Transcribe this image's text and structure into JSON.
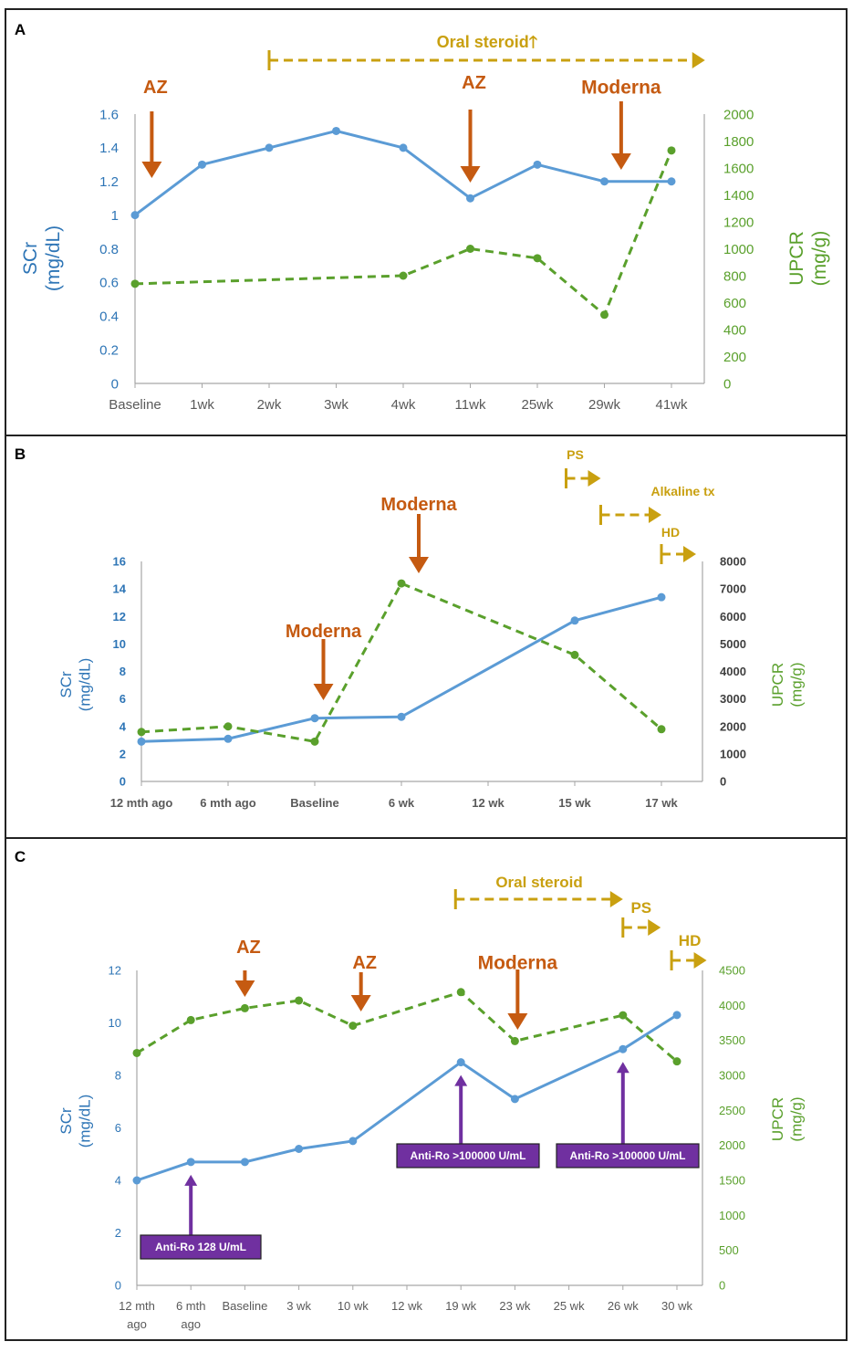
{
  "colors": {
    "scr": "#5b9bd5",
    "upcr": "#5aa02c",
    "event": "#c55a11",
    "steroid": "#c9a010",
    "antiro": "#7030a0",
    "axis_scr": "#2e75b6",
    "axis_upcr": "#5aa02c",
    "tick": "#595959"
  },
  "chart_data": [
    {
      "panel": "A",
      "type": "line",
      "categories": [
        "Baseline",
        "1wk",
        "2wk",
        "3wk",
        "4wk",
        "11wk",
        "25wk",
        "29wk",
        "41wk"
      ],
      "series": [
        {
          "name": "SCr (mg/dL)",
          "axis": "left",
          "style": "solid",
          "x": [
            0,
            1,
            2,
            3,
            4,
            5,
            6,
            7,
            8
          ],
          "values": [
            1.0,
            1.3,
            1.4,
            1.5,
            1.4,
            1.1,
            1.3,
            1.2,
            1.2
          ]
        },
        {
          "name": "UPCR (mg/g)",
          "axis": "right",
          "style": "dashed",
          "x": [
            0,
            4,
            5,
            6,
            7,
            8
          ],
          "values": [
            740,
            800,
            1000,
            930,
            510,
            1730
          ]
        }
      ],
      "left_axis": {
        "label1": "SCr",
        "label2": "(mg/dL)",
        "min": 0,
        "max": 1.6,
        "ticks": [
          "0",
          "0.2",
          "0.4",
          "0.6",
          "0.8",
          "1",
          "1.2",
          "1.4",
          "1.6"
        ]
      },
      "right_axis": {
        "label1": "UPCR",
        "label2": "(mg/g)",
        "min": 0,
        "max": 2000,
        "ticks": [
          "0",
          "200",
          "400",
          "600",
          "800",
          "1000",
          "1200",
          "1400",
          "1600",
          "1800",
          "2000"
        ]
      },
      "events": [
        {
          "label": "AZ",
          "x": 0.25
        },
        {
          "label": "AZ",
          "x": 5
        },
        {
          "label": "Moderna",
          "x": 7.25
        }
      ],
      "treatments": [
        {
          "label": "Oral steroid",
          "arrow_glyph": "🡑",
          "start": 2,
          "end": 8.5
        }
      ],
      "annotations": []
    },
    {
      "panel": "B",
      "type": "line",
      "categories": [
        "12 mth ago",
        "6 mth ago",
        "Baseline",
        "6 wk",
        "12 wk",
        "15 wk",
        "17 wk"
      ],
      "series": [
        {
          "name": "SCr (mg/dL)",
          "axis": "left",
          "style": "solid",
          "x": [
            0,
            1,
            2,
            3,
            5,
            6
          ],
          "values": [
            2.9,
            3.1,
            4.6,
            4.7,
            11.7,
            13.4
          ]
        },
        {
          "name": "UPCR (mg/g)",
          "axis": "right",
          "style": "dashed",
          "x": [
            0,
            1,
            2,
            3,
            5,
            6
          ],
          "values": [
            1800,
            2000,
            1450,
            7200,
            4600,
            1900
          ]
        }
      ],
      "left_axis": {
        "label1": "SCr",
        "label2": "(mg/dL)",
        "min": 0,
        "max": 16,
        "ticks": [
          "0",
          "2",
          "4",
          "6",
          "8",
          "10",
          "12",
          "14",
          "16"
        ]
      },
      "right_axis": {
        "label1": "UPCR",
        "label2": "(mg/g)",
        "min": 0,
        "max": 8000,
        "ticks": [
          "0",
          "1000",
          "2000",
          "3000",
          "4000",
          "5000",
          "6000",
          "7000",
          "8000"
        ]
      },
      "events": [
        {
          "label": "Moderna",
          "x": 2.1
        },
        {
          "label": "Moderna",
          "x": 3.2
        }
      ],
      "treatments": [
        {
          "label": "PS",
          "start": 4.9,
          "end": 5.3
        },
        {
          "label": "Alkaline tx",
          "start": 5.3,
          "end": 6.0
        },
        {
          "label": "HD",
          "start": 6.0,
          "end": 6.4
        }
      ],
      "annotations": []
    },
    {
      "panel": "C",
      "type": "line",
      "categories": [
        "12 mth ago",
        "6 mth ago",
        "Baseline",
        "3 wk",
        "10 wk",
        "12 wk",
        "19 wk",
        "23 wk",
        "25 wk",
        "26 wk",
        "30 wk"
      ],
      "categories_lines": [
        [
          "12 mth",
          "ago"
        ],
        [
          "6 mth",
          "ago"
        ],
        [
          "Baseline"
        ],
        [
          "3 wk"
        ],
        [
          "10 wk"
        ],
        [
          "12 wk"
        ],
        [
          "19 wk"
        ],
        [
          "23 wk"
        ],
        [
          "25 wk"
        ],
        [
          "26 wk"
        ],
        [
          "30 wk"
        ]
      ],
      "series": [
        {
          "name": "SCr (mg/dL)",
          "axis": "left",
          "style": "solid",
          "x": [
            0,
            1,
            2,
            3,
            4,
            6,
            7,
            9,
            10
          ],
          "values": [
            4.0,
            4.7,
            4.7,
            5.2,
            5.5,
            8.5,
            7.1,
            9.0,
            10.3
          ]
        },
        {
          "name": "UPCR (mg/g)",
          "axis": "right",
          "style": "dashed",
          "x": [
            0,
            1,
            2,
            3,
            4,
            6,
            7,
            9,
            10
          ],
          "values": [
            3320,
            3790,
            3960,
            4070,
            3710,
            4190,
            3490,
            3860,
            3200
          ]
        }
      ],
      "left_axis": {
        "label1": "SCr",
        "label2": "(mg/dL)",
        "min": 0,
        "max": 12,
        "ticks": [
          "0",
          "2",
          "4",
          "6",
          "8",
          "10",
          "12"
        ]
      },
      "right_axis": {
        "label1": "UPCR",
        "label2": "(mg/g)",
        "min": 0,
        "max": 4500,
        "ticks": [
          "0",
          "500",
          "1000",
          "1500",
          "2000",
          "2500",
          "3000",
          "3500",
          "4000",
          "4500"
        ]
      },
      "events": [
        {
          "label": "AZ",
          "x": 2
        },
        {
          "label": "AZ",
          "x": 4.15
        },
        {
          "label": "Moderna",
          "x": 7.05
        }
      ],
      "treatments": [
        {
          "label": "Oral steroid",
          "start": 5.9,
          "end": 9.0
        },
        {
          "label": "PS",
          "start": 9.0,
          "end": 9.7
        },
        {
          "label": "HD",
          "start": 9.9,
          "end": 10.55
        }
      ],
      "annotations": [
        {
          "label": "Anti-Ro 128 U/mL",
          "x": 1,
          "value": 4.7
        },
        {
          "label": "Anti-Ro >100000 U/mL",
          "x": 6,
          "value": 8.5
        },
        {
          "label": "Anti-Ro >100000 U/mL",
          "x": 9,
          "value": 9.0
        }
      ]
    }
  ]
}
